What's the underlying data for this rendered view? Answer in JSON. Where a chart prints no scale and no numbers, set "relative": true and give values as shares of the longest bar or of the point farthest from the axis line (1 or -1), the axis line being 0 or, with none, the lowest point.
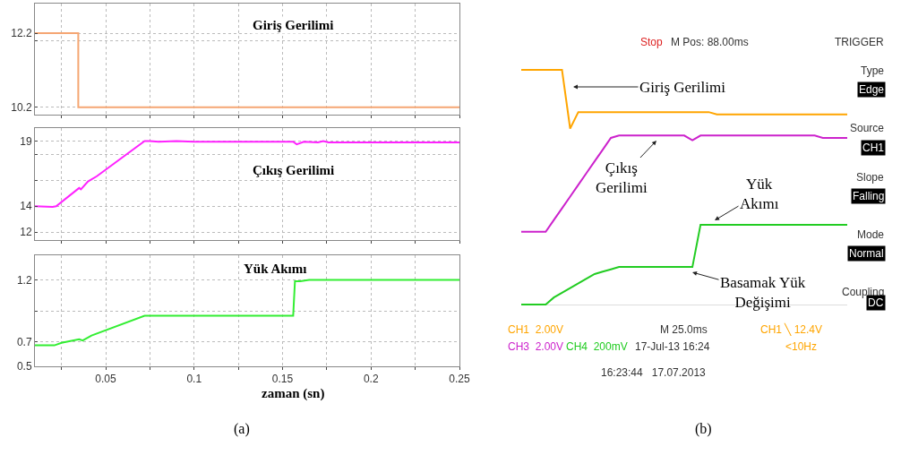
{
  "chart_data": [
    {
      "type": "line",
      "title": "Giriş Gerilimi",
      "tick_labels": "y",
      "grid": true,
      "line_style": "solid",
      "series": [
        {
          "color": "#f5a673",
          "x": [
            0.01,
            0.0345,
            0.0345,
            0.25
          ],
          "values": [
            12.2,
            12.2,
            10.2,
            10.2
          ]
        }
      ],
      "xlim": [
        0.01,
        0.25
      ],
      "xticks": [
        {
          "value": 0.025,
          "label": null
        },
        0.05,
        {
          "value": 0.075,
          "label": null
        },
        0.1,
        {
          "value": 0.125,
          "label": null
        },
        0.15,
        {
          "value": 0.175,
          "label": null
        },
        0.2,
        {
          "value": 0.225,
          "label": null
        },
        0.25
      ],
      "ylim": [
        10.0,
        13.0
      ],
      "yticks": [
        10.2,
        {
          "value": 12.0,
          "label": null
        },
        12.2
      ]
    },
    {
      "type": "line",
      "title": "Çıkış Gerilimi",
      "tick_labels": "y",
      "grid": true,
      "line_style": "solid",
      "series": [
        {
          "color": "#ff22ff",
          "x": [
            0.01,
            0.02,
            0.022,
            0.035,
            0.036,
            0.04,
            0.045,
            0.072,
            0.075,
            0.08,
            0.09,
            0.1,
            0.156,
            0.158,
            0.162,
            0.17,
            0.173,
            0.176,
            0.25
          ],
          "values": [
            14,
            13.95,
            14,
            15.4,
            15.3,
            15.9,
            16.3,
            19,
            19,
            18.95,
            19,
            18.95,
            18.95,
            18.75,
            18.95,
            18.9,
            19,
            18.9,
            18.9
          ]
        }
      ],
      "xlim": [
        0.01,
        0.25
      ],
      "xticks": [
        {
          "value": 0.025,
          "label": null
        },
        0.05,
        {
          "value": 0.075,
          "label": null
        },
        0.1,
        {
          "value": 0.125,
          "label": null
        },
        0.15,
        {
          "value": 0.175,
          "label": null
        },
        0.2,
        {
          "value": 0.225,
          "label": null
        },
        0.25
      ],
      "ylim": [
        11.4,
        20.0
      ],
      "yticks": [
        12,
        14,
        {
          "value": 16,
          "label": null
        },
        {
          "value": 18,
          "label": null
        },
        19
      ]
    },
    {
      "type": "line",
      "title": "Yük Akımı",
      "xlabel": "zaman (sn)",
      "grid": true,
      "line_style": "solid",
      "series": [
        {
          "color": "#33ee33",
          "x": [
            0.01,
            0.021,
            0.025,
            0.035,
            0.037,
            0.042,
            0.072,
            0.156,
            0.157,
            0.16,
            0.165,
            0.25
          ],
          "values": [
            0.67,
            0.67,
            0.69,
            0.72,
            0.71,
            0.75,
            0.91,
            0.91,
            1.19,
            1.19,
            1.2,
            1.2
          ]
        }
      ],
      "xlim": [
        0.01,
        0.25
      ],
      "xticks": [
        {
          "value": 0.025,
          "label": null
        },
        0.05,
        {
          "value": 0.075,
          "label": null
        },
        0.1,
        {
          "value": 0.125,
          "label": null
        },
        0.15,
        {
          "value": 0.175,
          "label": null
        },
        0.2,
        {
          "value": 0.225,
          "label": null
        },
        0.25
      ],
      "ylim": [
        0.5,
        1.4
      ],
      "yticks": [
        0.5,
        0.7,
        {
          "value": 0.95,
          "label": null
        },
        1.2
      ],
      "annotations": [
        "(a)"
      ]
    },
    {
      "type": "line",
      "relative": true,
      "line_style": "solid",
      "categories": [
        null,
        null,
        null,
        null,
        null,
        null,
        null,
        null,
        null,
        null,
        null,
        null,
        null,
        null,
        null,
        null,
        null,
        null,
        null,
        null,
        null,
        null,
        null,
        null,
        null,
        null,
        null,
        null,
        null,
        null,
        null,
        null,
        null,
        null,
        null,
        null,
        null,
        null,
        null,
        null,
        null
      ],
      "series": [
        {
          "color": "#ffa500",
          "values": [
            1.0,
            1.0,
            1.0,
            1.0,
            1.0,
            1.0,
            0.75,
            0.82,
            0.82,
            0.82,
            0.82,
            0.82,
            0.82,
            0.82,
            0.82,
            0.82,
            0.82,
            0.82,
            0.82,
            0.82,
            0.82,
            0.82,
            0.82,
            0.82,
            0.81,
            0.81,
            0.81,
            0.81,
            0.81,
            0.81,
            0.81,
            0.81,
            0.81,
            0.81,
            0.81,
            0.81,
            0.81,
            0.81,
            0.81,
            0.81,
            0.81
          ]
        },
        {
          "color": "#cc22cc",
          "values": [
            0.31,
            0.31,
            0.31,
            0.31,
            0.36,
            0.41,
            0.46,
            0.51,
            0.56,
            0.61,
            0.66,
            0.71,
            0.72,
            0.72,
            0.72,
            0.72,
            0.72,
            0.72,
            0.72,
            0.72,
            0.72,
            0.7,
            0.72,
            0.72,
            0.72,
            0.72,
            0.72,
            0.72,
            0.72,
            0.72,
            0.72,
            0.72,
            0.72,
            0.72,
            0.72,
            0.72,
            0.72,
            0.71,
            0.71,
            0.71,
            0.71
          ]
        },
        {
          "color": "#22cc22",
          "values": [
            0,
            0,
            0,
            0,
            0.03,
            0.05,
            0.07,
            0.09,
            0.11,
            0.13,
            0.14,
            0.15,
            0.16,
            0.16,
            0.16,
            0.16,
            0.16,
            0.16,
            0.16,
            0.16,
            0.16,
            0.16,
            0.34,
            0.34,
            0.34,
            0.34,
            0.34,
            0.34,
            0.34,
            0.34,
            0.34,
            0.34,
            0.34,
            0.34,
            0.34,
            0.34,
            0.34,
            0.34,
            0.34,
            0.34,
            0.34
          ]
        }
      ],
      "annotations": [
        "Giriş Gerilimi",
        "Çıkış\nGerilimi",
        "Yük\nAkımı",
        "Basamak Yük\nDeğişimi",
        "Stop",
        "M Pos: 88.00ms",
        "TRIGGER",
        "Type",
        "Edge",
        "Source",
        "CH1",
        "Slope",
        "Falling",
        "Mode",
        "Normal",
        "Coupling",
        "DC",
        "CH1  2.00V",
        "M 25.0ms",
        "CH1 ╲ 12.4V",
        "CH3  2.00V",
        "CH4  200mV",
        "17-Jul-13 16:24",
        "<10Hz",
        "16:23:44   17.07.2013",
        "(b)"
      ]
    }
  ]
}
